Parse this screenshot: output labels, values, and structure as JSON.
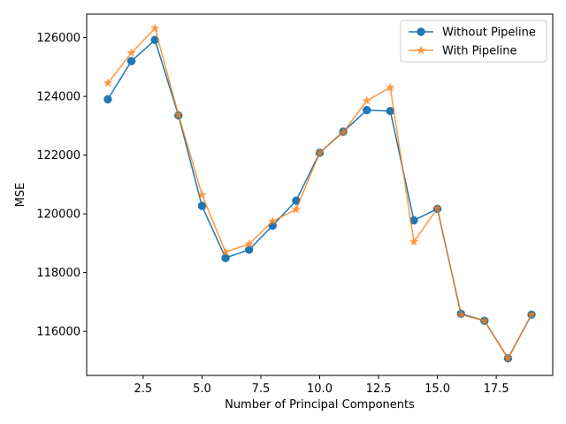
{
  "chart_data": {
    "type": "line",
    "title": "",
    "xlabel": "Number of Principal Components",
    "ylabel": "MSE",
    "xlim": [
      0.1,
      19.9
    ],
    "ylim": [
      114500,
      126800
    ],
    "xticks": [
      2.5,
      5.0,
      7.5,
      10.0,
      12.5,
      15.0,
      17.5
    ],
    "xtick_labels": [
      "2.5",
      "5.0",
      "7.5",
      "10.0",
      "12.5",
      "15.0",
      "17.5"
    ],
    "yticks": [
      116000,
      118000,
      120000,
      122000,
      124000,
      126000
    ],
    "ytick_labels": [
      "116000",
      "118000",
      "120000",
      "122000",
      "124000",
      "126000"
    ],
    "grid": false,
    "legend_position": "top-right",
    "x": [
      1,
      2,
      3,
      4,
      5,
      6,
      7,
      8,
      9,
      10,
      11,
      12,
      13,
      14,
      15,
      16,
      17,
      18,
      19
    ],
    "series": [
      {
        "name": "Without Pipeline",
        "color": "#1f77b4",
        "marker": "circle",
        "values": [
          123900,
          125200,
          125920,
          123350,
          120270,
          118500,
          118780,
          119600,
          120450,
          122080,
          122800,
          123530,
          123500,
          119780,
          120170,
          116600,
          116360,
          115080,
          116570
        ]
      },
      {
        "name": "With Pipeline",
        "color": "#ff7f0e",
        "marker": "star",
        "values": [
          124450,
          125480,
          126320,
          123380,
          120650,
          118700,
          118970,
          119750,
          120150,
          122080,
          122780,
          123850,
          124300,
          119050,
          120190,
          116570,
          116360,
          115080,
          116570
        ]
      }
    ]
  }
}
